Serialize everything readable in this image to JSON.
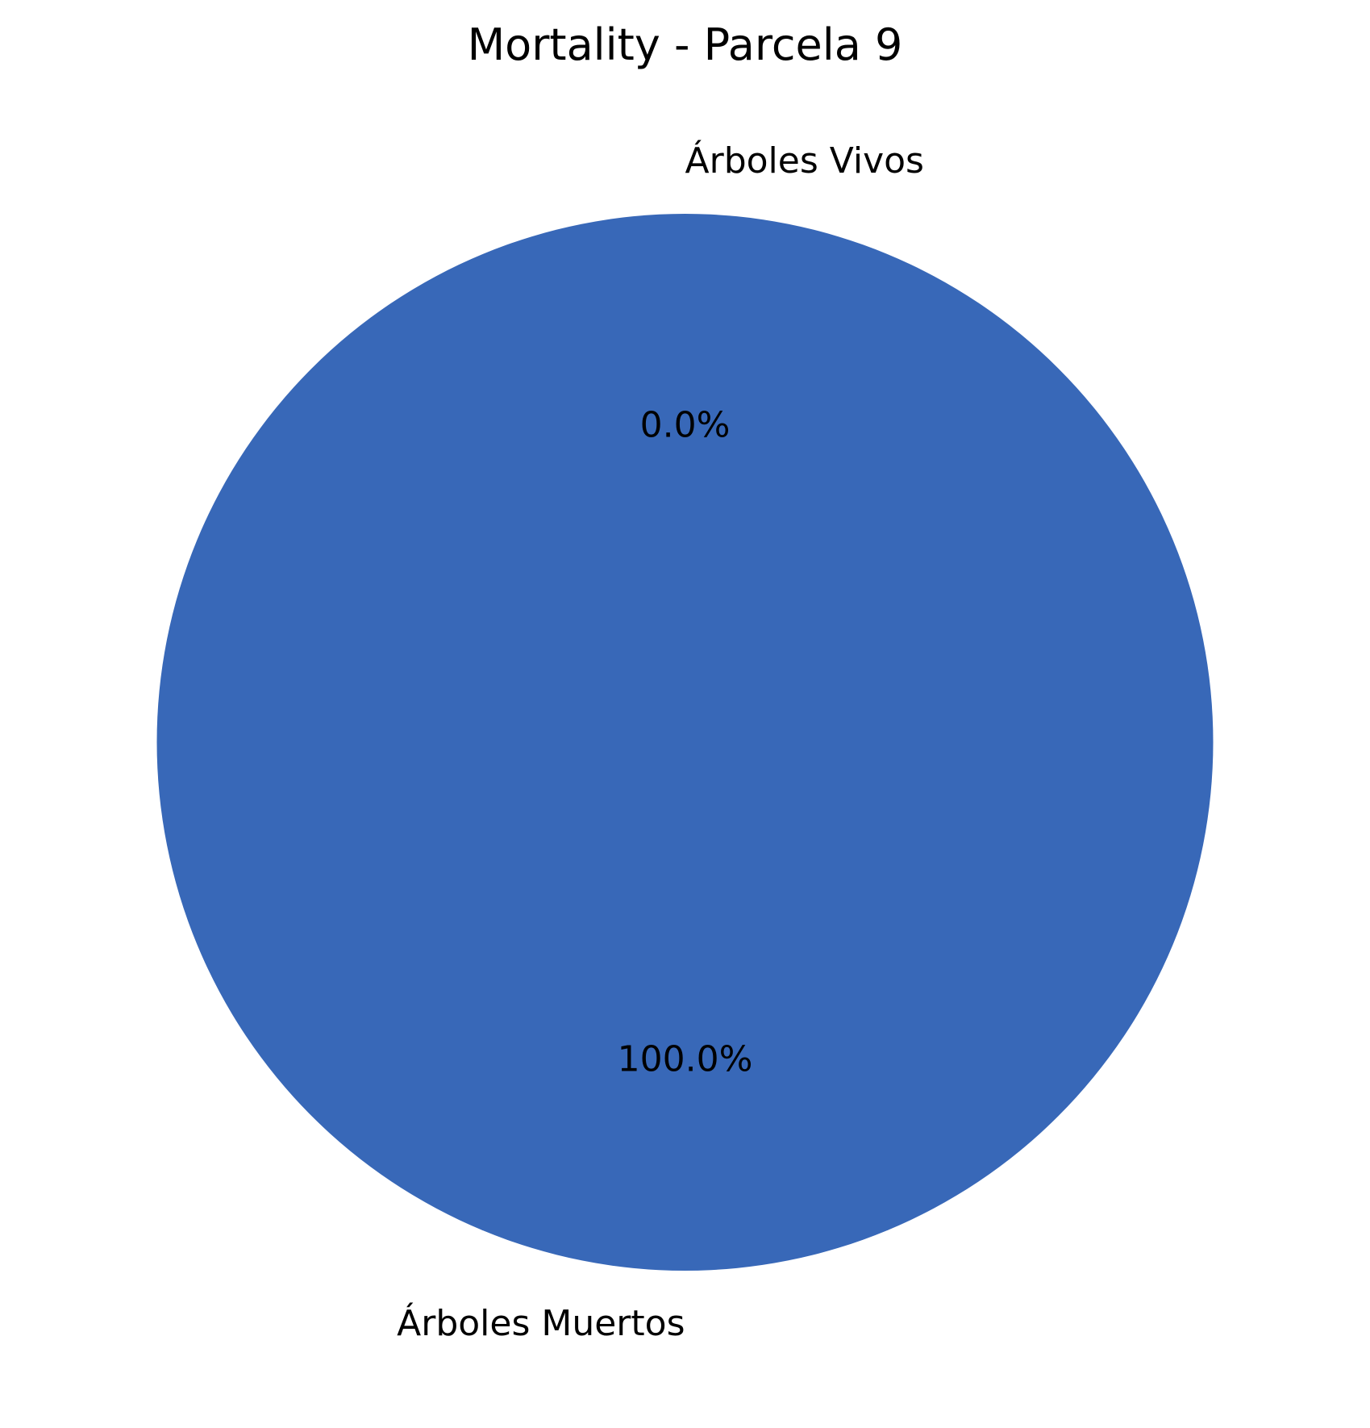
{
  "chart_data": {
    "type": "pie",
    "title": "Mortality - Parcela 9",
    "categories": [
      "Árboles Vivos",
      "Árboles Muertos"
    ],
    "values": [
      0,
      100
    ],
    "percent_labels": [
      "0.0%",
      "100.0%"
    ],
    "colors": [
      "#3a68b8",
      "#3868b8"
    ],
    "start_angle_deg": 90,
    "direction": "counterclockwise",
    "legend": "none"
  }
}
